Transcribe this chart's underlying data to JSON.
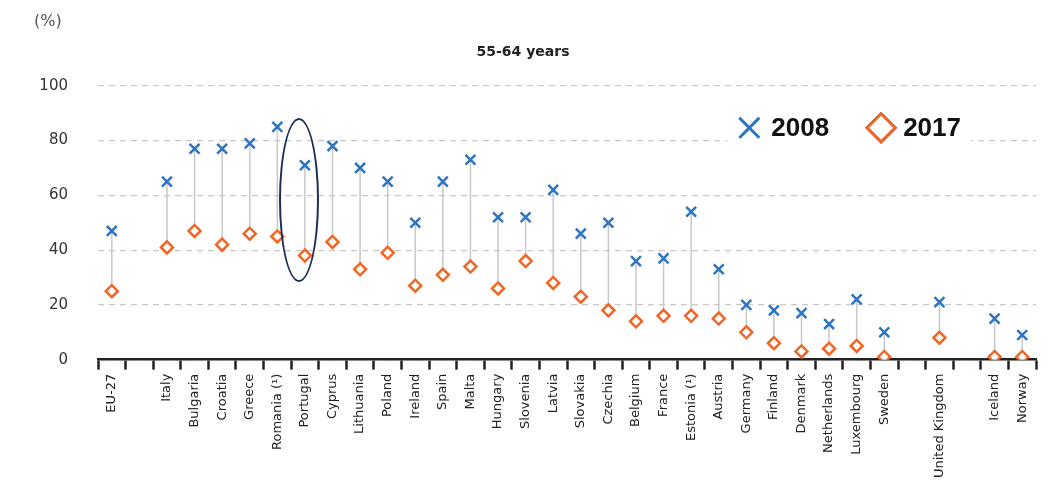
{
  "chart_data": {
    "type": "scatter",
    "title": "55-64 years",
    "ylabel": "(%)",
    "categories": [
      "EU-27",
      null,
      "Italy",
      "Bulgaria",
      "Croatia",
      "Greece",
      "Romania (¹)",
      "Portugal",
      "Cyprus",
      "Lithuania",
      "Poland",
      "Ireland",
      "Spain",
      "Malta",
      "Hungary",
      "Slovenia",
      "Latvia",
      "Slovakia",
      "Czechia",
      "Belgium",
      "France",
      "Estonia (¹)",
      "Austria",
      "Germany",
      "Finland",
      "Denmark",
      "Netherlands",
      "Luxembourg",
      "Sweden",
      null,
      "United Kingdom",
      null,
      "Iceland",
      "Norway"
    ],
    "series": [
      {
        "name": "2008",
        "color": "#2e75c0",
        "marker": "cross",
        "values": [
          47,
          null,
          65,
          77,
          77,
          79,
          85,
          71,
          78,
          70,
          65,
          50,
          65,
          73,
          52,
          52,
          62,
          46,
          50,
          36,
          37,
          54,
          33,
          20,
          18,
          17,
          13,
          22,
          10,
          null,
          21,
          null,
          15,
          9
        ]
      },
      {
        "name": "2017",
        "color": "#f26522",
        "marker": "diamond",
        "values": [
          25,
          null,
          41,
          47,
          42,
          46,
          45,
          38,
          43,
          33,
          39,
          27,
          31,
          34,
          26,
          36,
          28,
          23,
          18,
          14,
          16,
          16,
          15,
          10,
          6,
          3,
          4,
          5,
          1,
          null,
          8,
          null,
          1,
          1
        ]
      }
    ],
    "ylim": [
      0,
      100
    ],
    "yticks": [
      0,
      20,
      40,
      60,
      80,
      100
    ],
    "grid": "y",
    "legend": "top right"
  }
}
